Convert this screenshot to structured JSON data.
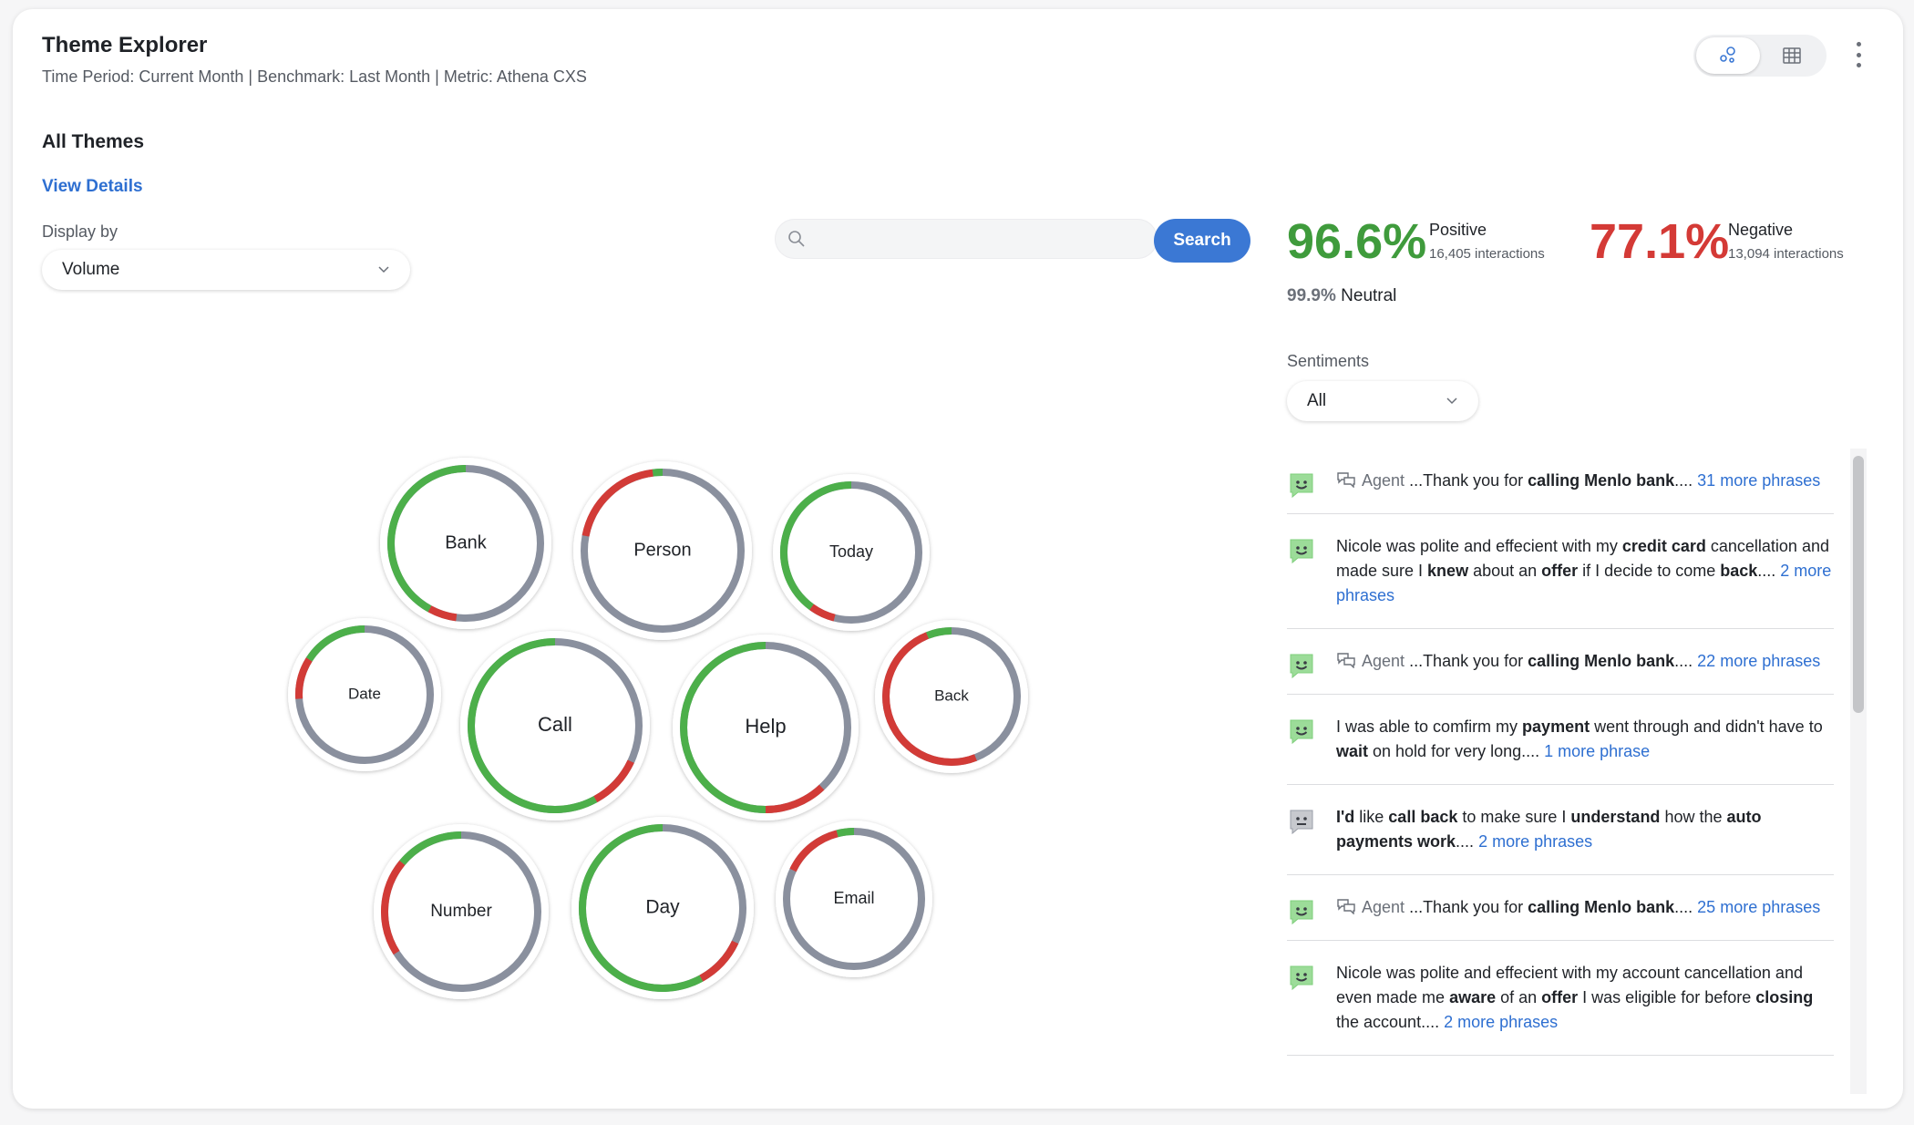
{
  "header": {
    "title": "Theme Explorer",
    "subtitle": "Time Period: Current Month | Benchmark: Last Month | Metric: Athena CXS",
    "view_toggle": [
      "bubble-view-icon",
      "table-view-icon"
    ],
    "menu_icon": "kebab-menu-icon"
  },
  "themes": {
    "section_title": "All Themes",
    "view_details": "View Details",
    "display_by_label": "Display by",
    "display_by_value": "Volume",
    "search_placeholder": "",
    "search_button": "Search",
    "bubbles": [
      {
        "label": "Bank",
        "positive": 0.42,
        "negative": 0.06
      },
      {
        "label": "Person",
        "positive": 0.02,
        "negative": 0.2
      },
      {
        "label": "Today",
        "positive": 0.4,
        "negative": 0.06
      },
      {
        "label": "Date",
        "positive": 0.16,
        "negative": 0.1
      },
      {
        "label": "Call",
        "positive": 0.58,
        "negative": 0.1
      },
      {
        "label": "Help",
        "positive": 0.5,
        "negative": 0.12
      },
      {
        "label": "Back",
        "positive": 0.06,
        "negative": 0.5
      },
      {
        "label": "Number",
        "positive": 0.14,
        "negative": 0.2
      },
      {
        "label": "Day",
        "positive": 0.58,
        "negative": 0.1
      },
      {
        "label": "Email",
        "positive": 0.04,
        "negative": 0.14
      }
    ]
  },
  "sentiment": {
    "positive_pct": "96.6%",
    "positive_label": "Positive",
    "positive_count": "16,405 interactions",
    "negative_pct": "77.1%",
    "negative_label": "Negative",
    "negative_count": "13,094 interactions",
    "neutral_pct": "99.9%",
    "neutral_label": "Neutral",
    "filter_label": "Sentiments",
    "filter_value": "All"
  },
  "colors": {
    "positive": "#4caf4a",
    "negative": "#d23b37",
    "neutral": "#8a909e",
    "accent": "#3b78d4"
  },
  "phrases": [
    {
      "sentiment": "positive",
      "agent": true,
      "segments": [
        {
          "t": "...Thank you for "
        },
        {
          "t": "calling Menlo bank",
          "b": true
        },
        {
          "t": ".... "
        }
      ],
      "more": "31 more phrases"
    },
    {
      "sentiment": "positive",
      "agent": false,
      "segments": [
        {
          "t": "Nicole was polite and effecient with my "
        },
        {
          "t": "credit card",
          "b": true
        },
        {
          "t": " cancellation and made sure I "
        },
        {
          "t": "knew",
          "b": true
        },
        {
          "t": " about an "
        },
        {
          "t": "offer",
          "b": true
        },
        {
          "t": " if I decide to come "
        },
        {
          "t": "back",
          "b": true
        },
        {
          "t": ".... "
        }
      ],
      "more": "2 more phrases"
    },
    {
      "sentiment": "positive",
      "agent": true,
      "segments": [
        {
          "t": "...Thank you for "
        },
        {
          "t": "calling Menlo bank",
          "b": true
        },
        {
          "t": ".... "
        }
      ],
      "more": "22 more phrases"
    },
    {
      "sentiment": "positive",
      "agent": false,
      "segments": [
        {
          "t": "I was able to comfirm my "
        },
        {
          "t": "payment",
          "b": true
        },
        {
          "t": " went through and didn't have to "
        },
        {
          "t": "wait",
          "b": true
        },
        {
          "t": " on hold for very long.... "
        }
      ],
      "more": "1 more phrase"
    },
    {
      "sentiment": "neutral",
      "agent": false,
      "segments": [
        {
          "t": "I'd",
          "b": true
        },
        {
          "t": " like "
        },
        {
          "t": "call back",
          "b": true
        },
        {
          "t": " to make sure I "
        },
        {
          "t": "understand",
          "b": true
        },
        {
          "t": " how the "
        },
        {
          "t": "auto payments work",
          "b": true
        },
        {
          "t": ".... "
        }
      ],
      "more": "2 more phrases"
    },
    {
      "sentiment": "positive",
      "agent": true,
      "segments": [
        {
          "t": "...Thank you for "
        },
        {
          "t": "calling Menlo bank",
          "b": true
        },
        {
          "t": ".... "
        }
      ],
      "more": "25 more phrases"
    },
    {
      "sentiment": "positive",
      "agent": false,
      "segments": [
        {
          "t": "Nicole was polite and effecient with my account cancellation and even made me "
        },
        {
          "t": "aware",
          "b": true
        },
        {
          "t": " of an "
        },
        {
          "t": "offer",
          "b": true
        },
        {
          "t": " I was eligible for before "
        },
        {
          "t": "closing",
          "b": true
        },
        {
          "t": " the account.... "
        }
      ],
      "more": "2 more phrases"
    }
  ],
  "agent_label": "Agent"
}
